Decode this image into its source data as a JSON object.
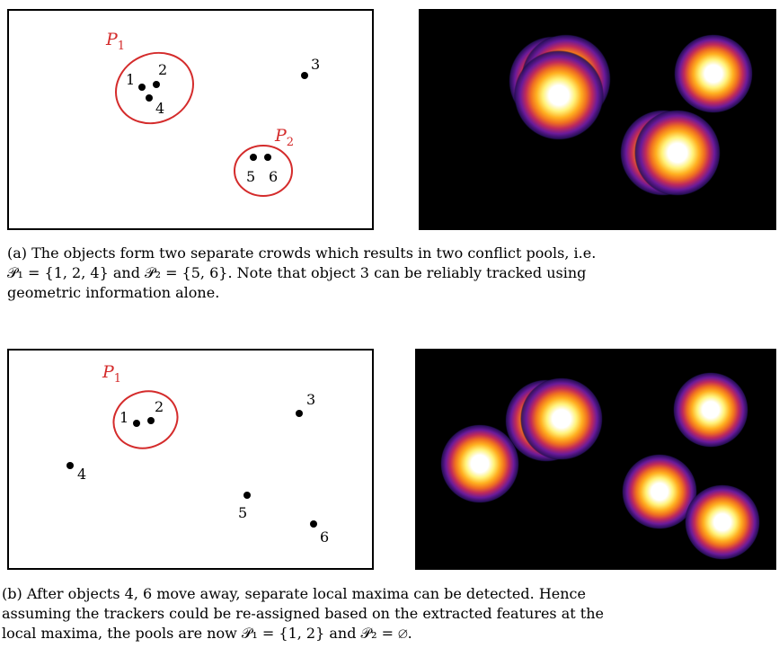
{
  "figure_a": {
    "pool_labels": [
      {
        "script": "P",
        "sub": "1"
      },
      {
        "script": "P",
        "sub": "2"
      }
    ],
    "object_labels": [
      "1",
      "2",
      "3",
      "4",
      "5",
      "6"
    ],
    "caption_lines": [
      "(a) The objects form two separate crowds which results in two conflict pools, i.e.",
      "𝒫₁ = {1, 2, 4} and 𝒫₂ = {5, 6}. Note that object 3 can be reliably tracked using",
      "geometric information alone."
    ]
  },
  "figure_b": {
    "pool_labels": [
      {
        "script": "P",
        "sub": "1"
      }
    ],
    "object_labels": [
      "1",
      "2",
      "3",
      "4",
      "5",
      "6"
    ],
    "caption_lines": [
      "(b) After objects 4, 6 move away, separate local maxima can be detected. Hence",
      "assuming the trackers could be re-assigned based on the extracted features at the",
      "local maxima, the pools are now 𝒫₁ = {1, 2} and 𝒫₂ = ∅."
    ]
  },
  "colors": {
    "pool_outline": "#d42b2b",
    "heatmap_background": "#000000",
    "heatmap_palette": [
      "#ffffff",
      "#fff27a",
      "#ffb020",
      "#f07020",
      "#c02a5a",
      "#6a1a9a",
      "#2a1060"
    ]
  }
}
